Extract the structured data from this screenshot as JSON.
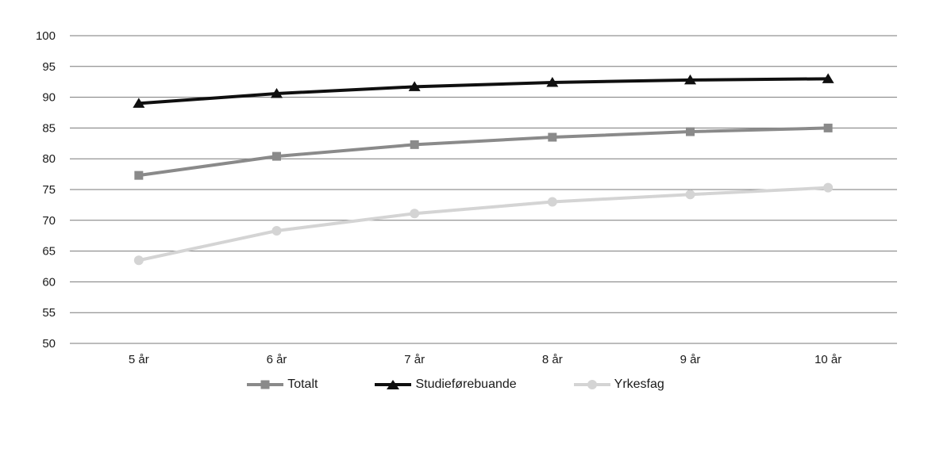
{
  "figure": {
    "background_color": "#ffffff",
    "text_color": "#1a1a1a",
    "gridline_color": "#787878"
  },
  "chart_data": {
    "type": "line",
    "title": "",
    "xlabel": "",
    "ylabel": "",
    "categories": [
      "5 år",
      "6 år",
      "7 år",
      "8 år",
      "9 år",
      "10 år"
    ],
    "series": [
      {
        "name": "Totalt",
        "marker": "square",
        "color": "#8a8a8a",
        "values": [
          77.3,
          80.4,
          82.3,
          83.5,
          84.4,
          85.0
        ]
      },
      {
        "name": "Studieførebuande",
        "marker": "triangle",
        "color": "#0f0f0f",
        "values": [
          89.0,
          90.6,
          91.7,
          92.4,
          92.8,
          93.0
        ]
      },
      {
        "name": "Yrkesfag",
        "marker": "circle",
        "color": "#d4d4d4",
        "values": [
          63.5,
          68.3,
          71.1,
          73.0,
          74.2,
          75.3
        ]
      }
    ],
    "ylim": [
      50,
      100
    ],
    "yticks": [
      50,
      55,
      60,
      65,
      70,
      75,
      80,
      85,
      90,
      95,
      100
    ],
    "grid": true,
    "legend_position": "bottom"
  }
}
